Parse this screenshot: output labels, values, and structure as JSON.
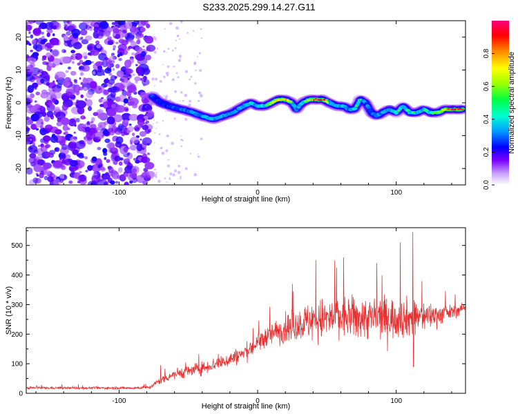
{
  "title": "S233.2025.299.14.27.G11",
  "colors": {
    "snr_line": "#e83030",
    "frame": "#000000",
    "background": "#ffffff",
    "noise": "#8a2be2"
  },
  "chart_data": [
    {
      "type": "heatmap",
      "xlabel": "Height of straight line (km)",
      "ylabel": "Frequency (Hz)",
      "xlim": [
        -167,
        150
      ],
      "ylim": [
        -25,
        25
      ],
      "x_ticks": [
        -100,
        0,
        100
      ],
      "y_ticks": [
        -20,
        -10,
        0,
        10,
        20
      ],
      "colorbar": {
        "label": "Normalized spectral amplitude",
        "range": [
          0,
          1
        ],
        "ticks": [
          "0.0",
          "0.2",
          "0.4",
          "0.6",
          "0.8"
        ]
      },
      "noise_region": [
        -167,
        -77
      ],
      "ridge": {
        "x": [
          -76,
          -70,
          -60,
          -50,
          -40,
          -32,
          -25,
          -18,
          -10,
          -5,
          0,
          5,
          10,
          15,
          20,
          25,
          28,
          32,
          37,
          42,
          47,
          52,
          57,
          62,
          66,
          70,
          74,
          78,
          82,
          86,
          90,
          95,
          100,
          105,
          110,
          115,
          120,
          125,
          130,
          135,
          140,
          148
        ],
        "y": [
          2,
          0,
          -1.5,
          -2.5,
          -4,
          -5,
          -4,
          -3,
          -1,
          0,
          -1,
          -1,
          0,
          1,
          1,
          0,
          -2,
          0,
          1,
          1,
          1,
          0,
          -1,
          -1,
          -2,
          -2,
          1,
          0,
          -3,
          -4,
          -3,
          -2,
          -3,
          -1,
          -3,
          -3,
          -2,
          -3,
          -3,
          -2,
          -2,
          -2
        ],
        "amplitude": [
          0.35,
          0.3,
          0.35,
          0.4,
          0.45,
          0.45,
          0.45,
          0.4,
          0.45,
          0.5,
          0.45,
          0.5,
          0.6,
          0.7,
          0.8,
          0.5,
          0.4,
          0.5,
          0.6,
          0.95,
          0.9,
          0.5,
          0.45,
          0.45,
          0.4,
          0.5,
          0.5,
          0.4,
          0.4,
          0.4,
          0.45,
          0.45,
          0.5,
          0.5,
          0.5,
          0.5,
          0.5,
          0.5,
          0.55,
          0.7,
          0.9,
          0.95
        ]
      }
    },
    {
      "type": "line",
      "xlabel": "Height of straight line (km)",
      "ylabel": "SNR (10 * v/v)",
      "xlim": [
        -167,
        150
      ],
      "ylim": [
        0,
        560
      ],
      "x_ticks": [
        -100,
        0,
        100
      ],
      "y_ticks": [
        0,
        100,
        200,
        300,
        400,
        500
      ],
      "series": [
        {
          "x": [
            -167,
            -150,
            -130,
            -110,
            -90,
            -78,
            -70,
            -60,
            -50,
            -40,
            -30,
            -20,
            -10,
            0,
            10,
            20,
            30,
            40,
            50,
            60,
            70,
            80,
            90,
            100,
            110,
            120,
            130,
            140,
            150
          ],
          "mean": [
            18,
            18,
            18,
            18,
            18,
            20,
            45,
            65,
            75,
            85,
            100,
            115,
            135,
            170,
            200,
            220,
            235,
            245,
            250,
            255,
            255,
            255,
            255,
            255,
            255,
            260,
            265,
            275,
            290
          ],
          "spread": [
            8,
            8,
            8,
            8,
            8,
            10,
            25,
            35,
            40,
            40,
            45,
            50,
            55,
            65,
            75,
            90,
            110,
            130,
            140,
            140,
            140,
            140,
            140,
            130,
            125,
            100,
            70,
            45,
            30
          ],
          "peaks": [
            [
              -70,
              95
            ],
            [
              -13,
              140
            ],
            [
              6,
              210
            ],
            [
              25,
              370
            ],
            [
              42,
              450
            ],
            [
              57,
              425
            ],
            [
              62,
              460
            ],
            [
              86,
              440
            ],
            [
              112,
              545
            ],
            [
              112.5,
              90
            ],
            [
              103,
              510
            ]
          ]
        }
      ]
    }
  ]
}
